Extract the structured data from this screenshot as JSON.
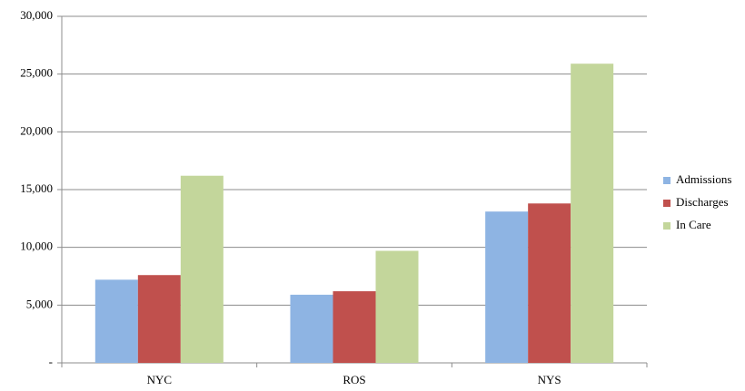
{
  "chart_data": {
    "type": "bar",
    "categories": [
      "NYC",
      "ROS",
      "NYS"
    ],
    "series": [
      {
        "name": "Admissions",
        "color": "#8eb4e3",
        "values": [
          7200,
          5900,
          13100
        ]
      },
      {
        "name": "Discharges",
        "color": "#c0504d",
        "values": [
          7600,
          6200,
          13800
        ]
      },
      {
        "name": "In Care",
        "color": "#c3d69b",
        "values": [
          16200,
          9700,
          25900
        ]
      }
    ],
    "ylim": [
      0,
      30000
    ],
    "yticks": [
      {
        "value": 0,
        "label": "-"
      },
      {
        "value": 5000,
        "label": "5,000"
      },
      {
        "value": 10000,
        "label": "10,000"
      },
      {
        "value": 15000,
        "label": "15,000"
      },
      {
        "value": 20000,
        "label": "20,000"
      },
      {
        "value": 25000,
        "label": "25,000"
      },
      {
        "value": 30000,
        "label": "30,000"
      }
    ],
    "grid": true,
    "legend": "right"
  }
}
